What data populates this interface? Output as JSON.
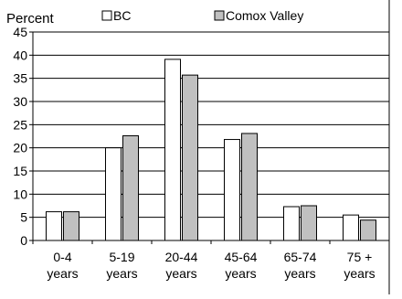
{
  "chart_data": {
    "type": "bar",
    "ylabel": "Percent",
    "categories": [
      [
        "0-4",
        "years"
      ],
      [
        "5-19",
        "years"
      ],
      [
        "20-44",
        "years"
      ],
      [
        "45-64",
        "years"
      ],
      [
        "65-74",
        "years"
      ],
      [
        "75 +",
        "years"
      ]
    ],
    "series": [
      {
        "name": "BC",
        "color": "#ffffff",
        "values": [
          6.2,
          20.0,
          39.1,
          21.8,
          7.3,
          5.5
        ]
      },
      {
        "name": "Comox Valley",
        "color": "#c0c0c0",
        "values": [
          6.2,
          22.6,
          35.7,
          23.1,
          7.5,
          4.4
        ]
      }
    ],
    "ylim": [
      0,
      45
    ],
    "ytick_step": 5,
    "grid": true,
    "legend_position": "top"
  }
}
